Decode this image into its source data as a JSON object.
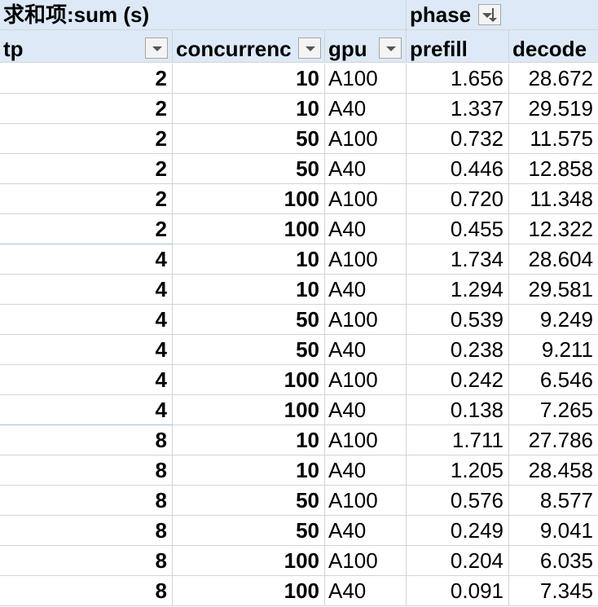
{
  "pivot": {
    "title": "求和项:sum (s)",
    "column_field": "phase",
    "headers": {
      "tp": "tp",
      "concurrency": "concurrenc",
      "gpu": "gpu",
      "prefill": "prefill",
      "decode": "decode"
    },
    "icons": {
      "tp_filter": "dropdown-filter-icon",
      "concurrency_filter": "dropdown-filter-icon",
      "gpu_filter": "dropdown-filter-icon",
      "phase_sort": "sort-descending-filter-icon"
    },
    "rows": [
      {
        "tp": "2",
        "concurrency": "10",
        "gpu": "A100",
        "prefill": "1.656",
        "decode": "28.672"
      },
      {
        "tp": "2",
        "concurrency": "10",
        "gpu": "A40",
        "prefill": "1.337",
        "decode": "29.519"
      },
      {
        "tp": "2",
        "concurrency": "50",
        "gpu": "A100",
        "prefill": "0.732",
        "decode": "11.575"
      },
      {
        "tp": "2",
        "concurrency": "50",
        "gpu": "A40",
        "prefill": "0.446",
        "decode": "12.858"
      },
      {
        "tp": "2",
        "concurrency": "100",
        "gpu": "A100",
        "prefill": "0.720",
        "decode": "11.348"
      },
      {
        "tp": "2",
        "concurrency": "100",
        "gpu": "A40",
        "prefill": "0.455",
        "decode": "12.322"
      },
      {
        "tp": "4",
        "concurrency": "10",
        "gpu": "A100",
        "prefill": "1.734",
        "decode": "28.604"
      },
      {
        "tp": "4",
        "concurrency": "10",
        "gpu": "A40",
        "prefill": "1.294",
        "decode": "29.581"
      },
      {
        "tp": "4",
        "concurrency": "50",
        "gpu": "A100",
        "prefill": "0.539",
        "decode": "9.249"
      },
      {
        "tp": "4",
        "concurrency": "50",
        "gpu": "A40",
        "prefill": "0.238",
        "decode": "9.211"
      },
      {
        "tp": "4",
        "concurrency": "100",
        "gpu": "A100",
        "prefill": "0.242",
        "decode": "6.546"
      },
      {
        "tp": "4",
        "concurrency": "100",
        "gpu": "A40",
        "prefill": "0.138",
        "decode": "7.265"
      },
      {
        "tp": "8",
        "concurrency": "10",
        "gpu": "A100",
        "prefill": "1.711",
        "decode": "27.786"
      },
      {
        "tp": "8",
        "concurrency": "10",
        "gpu": "A40",
        "prefill": "1.205",
        "decode": "28.458"
      },
      {
        "tp": "8",
        "concurrency": "50",
        "gpu": "A100",
        "prefill": "0.576",
        "decode": "8.577"
      },
      {
        "tp": "8",
        "concurrency": "50",
        "gpu": "A40",
        "prefill": "0.249",
        "decode": "9.041"
      },
      {
        "tp": "8",
        "concurrency": "100",
        "gpu": "A100",
        "prefill": "0.204",
        "decode": "6.035"
      },
      {
        "tp": "8",
        "concurrency": "100",
        "gpu": "A40",
        "prefill": "0.091",
        "decode": "7.345"
      }
    ]
  },
  "colors": {
    "header_background": "#dde9f7",
    "grid_line": "#d4d4d4",
    "group_separator": "#9fc5d9"
  }
}
